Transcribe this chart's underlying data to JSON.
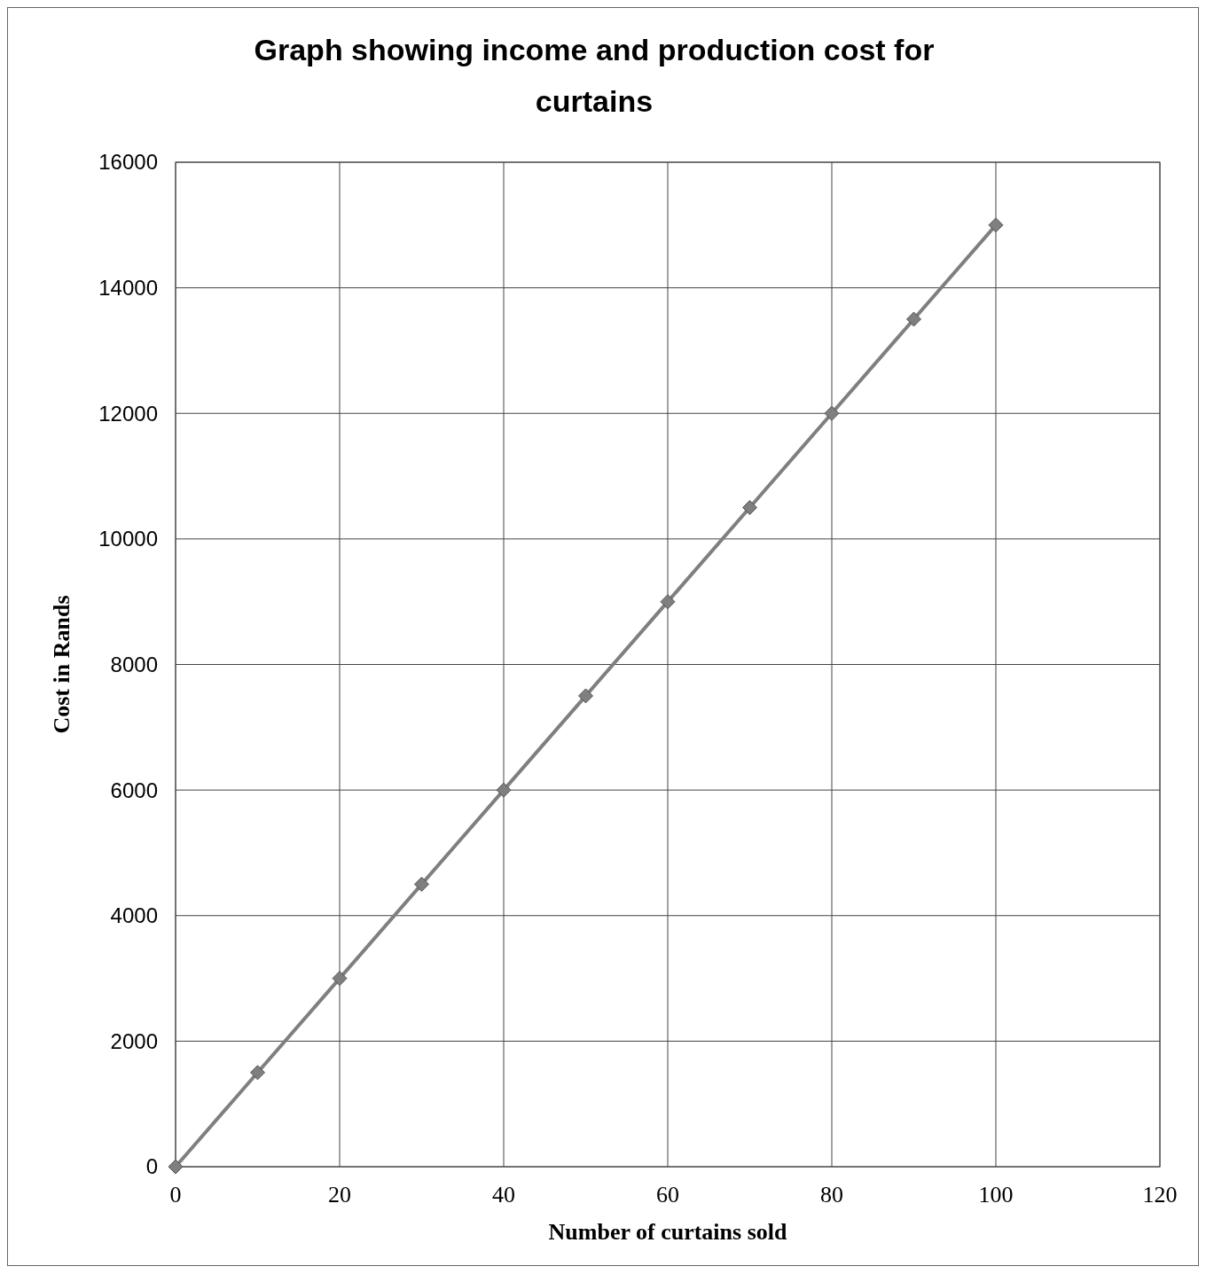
{
  "chart_data": {
    "type": "line",
    "title": "Graph showing income and production cost for curtains",
    "xlabel": "Number of curtains sold",
    "ylabel": "Cost in Rands",
    "x": [
      0,
      10,
      20,
      30,
      40,
      50,
      60,
      70,
      80,
      90,
      100
    ],
    "series": [
      {
        "color": "#7f7f7f",
        "values": [
          0,
          1500,
          3000,
          4500,
          6000,
          7500,
          9000,
          10500,
          12000,
          13500,
          15000
        ]
      }
    ],
    "xlim": [
      0,
      120
    ],
    "xticks": [
      0,
      20,
      40,
      60,
      80,
      100,
      120
    ],
    "ylim": [
      0,
      16000
    ],
    "yticks": [
      0,
      2000,
      4000,
      6000,
      8000,
      10000,
      12000,
      14000,
      16000
    ],
    "grid": true,
    "marker": "diamond",
    "line_style": "solid"
  }
}
